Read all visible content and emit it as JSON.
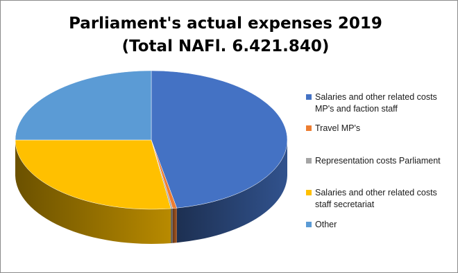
{
  "chart_data": {
    "type": "pie",
    "title_lines": [
      "Parliament's actual expenses 2019",
      "(Total NAFl. 6.421.840)"
    ],
    "series": [
      {
        "label": "Salaries and other related costs MP's and faction staff",
        "value": 47.0,
        "color": "#4472c4"
      },
      {
        "label": "Travel MP's",
        "value": 0.5,
        "color": "#ed7d31"
      },
      {
        "label": "Representation costs Parliament",
        "value": 0.2,
        "color": "#a5a5a5"
      },
      {
        "label": "Salaries and other related costs staff secretariat",
        "value": 27.3,
        "color": "#ffc000"
      },
      {
        "label": "Other",
        "value": 25.0,
        "color": "#5b9bd5"
      }
    ],
    "legend_position": "right",
    "style": "3d"
  }
}
